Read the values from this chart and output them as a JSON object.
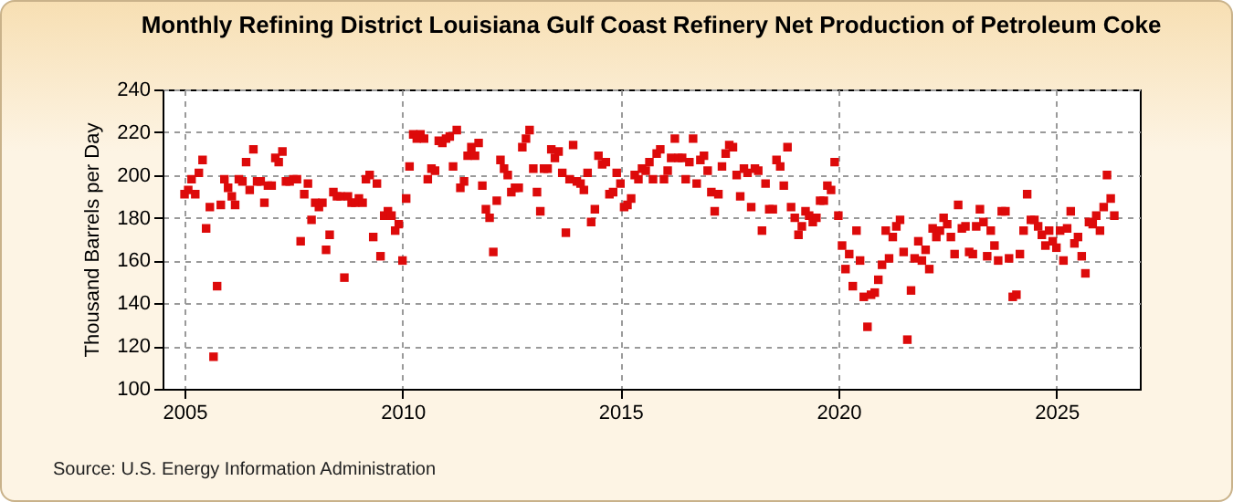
{
  "chart_data": {
    "type": "scatter",
    "title": "Monthly Refining District Louisiana Gulf Coast Refinery Net Production of Petroleum Coke",
    "ylabel": "Thousand Barrels per Day",
    "annotations": [
      "Source: U.S. Energy Information Administration"
    ],
    "x": [
      "2005-01",
      "2005-02",
      "2005-03",
      "2005-04",
      "2005-05",
      "2005-06",
      "2005-07",
      "2005-08",
      "2005-09",
      "2005-10",
      "2005-11",
      "2005-12",
      "2006-01",
      "2006-02",
      "2006-03",
      "2006-04",
      "2006-05",
      "2006-06",
      "2006-07",
      "2006-08",
      "2006-09",
      "2006-10",
      "2006-11",
      "2006-12",
      "2007-01",
      "2007-02",
      "2007-03",
      "2007-04",
      "2007-05",
      "2007-06",
      "2007-07",
      "2007-08",
      "2007-09",
      "2007-10",
      "2007-11",
      "2007-12",
      "2008-01",
      "2008-02",
      "2008-03",
      "2008-04",
      "2008-05",
      "2008-06",
      "2008-07",
      "2008-08",
      "2008-09",
      "2008-10",
      "2008-11",
      "2008-12",
      "2009-01",
      "2009-02",
      "2009-03",
      "2009-04",
      "2009-05",
      "2009-06",
      "2009-07",
      "2009-08",
      "2009-09",
      "2009-10",
      "2009-11",
      "2009-12",
      "2010-01",
      "2010-02",
      "2010-03",
      "2010-04",
      "2010-05",
      "2010-06",
      "2010-07",
      "2010-08",
      "2010-09",
      "2010-10",
      "2010-11",
      "2010-12",
      "2011-01",
      "2011-02",
      "2011-03",
      "2011-04",
      "2011-05",
      "2011-06",
      "2011-07",
      "2011-08",
      "2011-09",
      "2011-10",
      "2011-11",
      "2011-12",
      "2012-01",
      "2012-02",
      "2012-03",
      "2012-04",
      "2012-05",
      "2012-06",
      "2012-07",
      "2012-08",
      "2012-09",
      "2012-10",
      "2012-11",
      "2012-12",
      "2013-01",
      "2013-02",
      "2013-03",
      "2013-04",
      "2013-05",
      "2013-06",
      "2013-07",
      "2013-08",
      "2013-09",
      "2013-10",
      "2013-11",
      "2013-12",
      "2014-01",
      "2014-02",
      "2014-03",
      "2014-04",
      "2014-05",
      "2014-06",
      "2014-07",
      "2014-08",
      "2014-09",
      "2014-10",
      "2014-11",
      "2014-12",
      "2015-01",
      "2015-02",
      "2015-03",
      "2015-04",
      "2015-05",
      "2015-06",
      "2015-07",
      "2015-08",
      "2015-09",
      "2015-10",
      "2015-11",
      "2015-12",
      "2016-01",
      "2016-02",
      "2016-03",
      "2016-04",
      "2016-05",
      "2016-06",
      "2016-07",
      "2016-08",
      "2016-09",
      "2016-10",
      "2016-11",
      "2016-12",
      "2017-01",
      "2017-02",
      "2017-03",
      "2017-04",
      "2017-05",
      "2017-06",
      "2017-07",
      "2017-08",
      "2017-09",
      "2017-10",
      "2017-11",
      "2017-12",
      "2018-01",
      "2018-02",
      "2018-03",
      "2018-04",
      "2018-05",
      "2018-06",
      "2018-07",
      "2018-08",
      "2018-09",
      "2018-10",
      "2018-11",
      "2018-12",
      "2019-01",
      "2019-02",
      "2019-03",
      "2019-04",
      "2019-05",
      "2019-06",
      "2019-07",
      "2019-08",
      "2019-09",
      "2019-10",
      "2019-11",
      "2019-12",
      "2020-01",
      "2020-02",
      "2020-03",
      "2020-04",
      "2020-05",
      "2020-06",
      "2020-07",
      "2020-08",
      "2020-09",
      "2020-10",
      "2020-11",
      "2020-12",
      "2021-01",
      "2021-02",
      "2021-03",
      "2021-04",
      "2021-05",
      "2021-06",
      "2021-07",
      "2021-08",
      "2021-09",
      "2021-10",
      "2021-11",
      "2021-12",
      "2022-01",
      "2022-02",
      "2022-03",
      "2022-04",
      "2022-05",
      "2022-06",
      "2022-07",
      "2022-08",
      "2022-09",
      "2022-10",
      "2022-11",
      "2022-12",
      "2023-01",
      "2023-02",
      "2023-03",
      "2023-04",
      "2023-05",
      "2023-06",
      "2023-07",
      "2023-08",
      "2023-09",
      "2023-10",
      "2023-11",
      "2023-12",
      "2024-01",
      "2024-02",
      "2024-03",
      "2024-04",
      "2024-05",
      "2024-06",
      "2024-07",
      "2024-08",
      "2024-09",
      "2024-10",
      "2024-11",
      "2024-12",
      "2025-01",
      "2025-02",
      "2025-03",
      "2025-04",
      "2025-05",
      "2025-06",
      "2025-07",
      "2025-08",
      "2025-09",
      "2025-10",
      "2025-11",
      "2025-12",
      "2026-01",
      "2026-02",
      "2026-03",
      "2026-04",
      "2026-05"
    ],
    "series": [
      {
        "color": "#dd0a0a",
        "values": [
          191,
          193,
          198,
          191,
          201,
          207,
          175,
          185,
          115,
          148,
          186,
          198,
          194,
          190,
          186,
          198,
          197,
          206,
          193,
          212,
          197,
          197,
          187,
          195,
          195,
          208,
          206,
          211,
          197,
          197,
          198,
          198,
          169,
          191,
          196,
          179,
          187,
          185,
          187,
          165,
          172,
          192,
          190,
          190,
          152,
          190,
          187,
          187,
          189,
          187,
          198,
          200,
          171,
          196,
          162,
          181,
          183,
          181,
          174,
          177,
          160,
          189,
          204,
          219,
          217,
          219,
          217,
          198,
          203,
          202,
          216,
          215,
          217,
          218,
          204,
          221,
          194,
          197,
          209,
          213,
          209,
          215,
          195,
          184,
          180,
          164,
          188,
          207,
          203,
          200,
          192,
          194,
          194,
          213,
          217,
          221,
          203,
          192,
          183,
          203,
          203,
          212,
          208,
          211,
          201,
          173,
          198,
          214,
          197,
          196,
          193,
          201,
          178,
          184,
          209,
          205,
          206,
          191,
          192,
          201,
          196,
          185,
          186,
          189,
          200,
          198,
          203,
          202,
          206,
          198,
          210,
          212,
          198,
          202,
          208,
          217,
          208,
          208,
          198,
          206,
          217,
          196,
          207,
          209,
          202,
          192,
          183,
          191,
          204,
          210,
          214,
          213,
          200,
          190,
          203,
          201,
          185,
          203,
          202,
          174,
          196,
          184,
          184,
          207,
          204,
          195,
          213,
          185,
          180,
          172,
          176,
          183,
          181,
          178,
          180,
          188,
          188,
          195,
          193,
          206,
          181,
          167,
          156,
          163,
          148,
          174,
          160,
          143,
          129,
          144,
          145,
          151,
          158,
          174,
          161,
          171,
          176,
          179,
          164,
          123,
          146,
          161,
          169,
          160,
          165,
          156,
          175,
          171,
          174,
          180,
          177,
          171,
          163,
          186,
          175,
          176,
          164,
          163,
          176,
          184,
          178,
          162,
          174,
          167,
          160,
          183,
          183,
          161,
          143,
          144,
          163,
          174,
          191,
          179,
          179,
          176,
          172,
          167,
          174,
          169,
          166,
          174,
          160,
          175,
          183,
          168,
          171,
          162,
          154,
          178,
          177,
          181,
          174,
          185,
          200,
          189,
          181
        ]
      }
    ],
    "xlim": [
      "2004-07",
      "2026-12"
    ],
    "xticks": [
      {
        "value": "2005",
        "label": "2005"
      },
      {
        "value": "2010",
        "label": "2010"
      },
      {
        "value": "2015",
        "label": "2015"
      },
      {
        "value": "2020",
        "label": "2020"
      },
      {
        "value": "2025",
        "label": "2025"
      }
    ],
    "ylim": [
      100,
      240
    ],
    "yticks": [
      100,
      120,
      140,
      160,
      180,
      200,
      220,
      240
    ],
    "grid": true,
    "marker": "square"
  }
}
